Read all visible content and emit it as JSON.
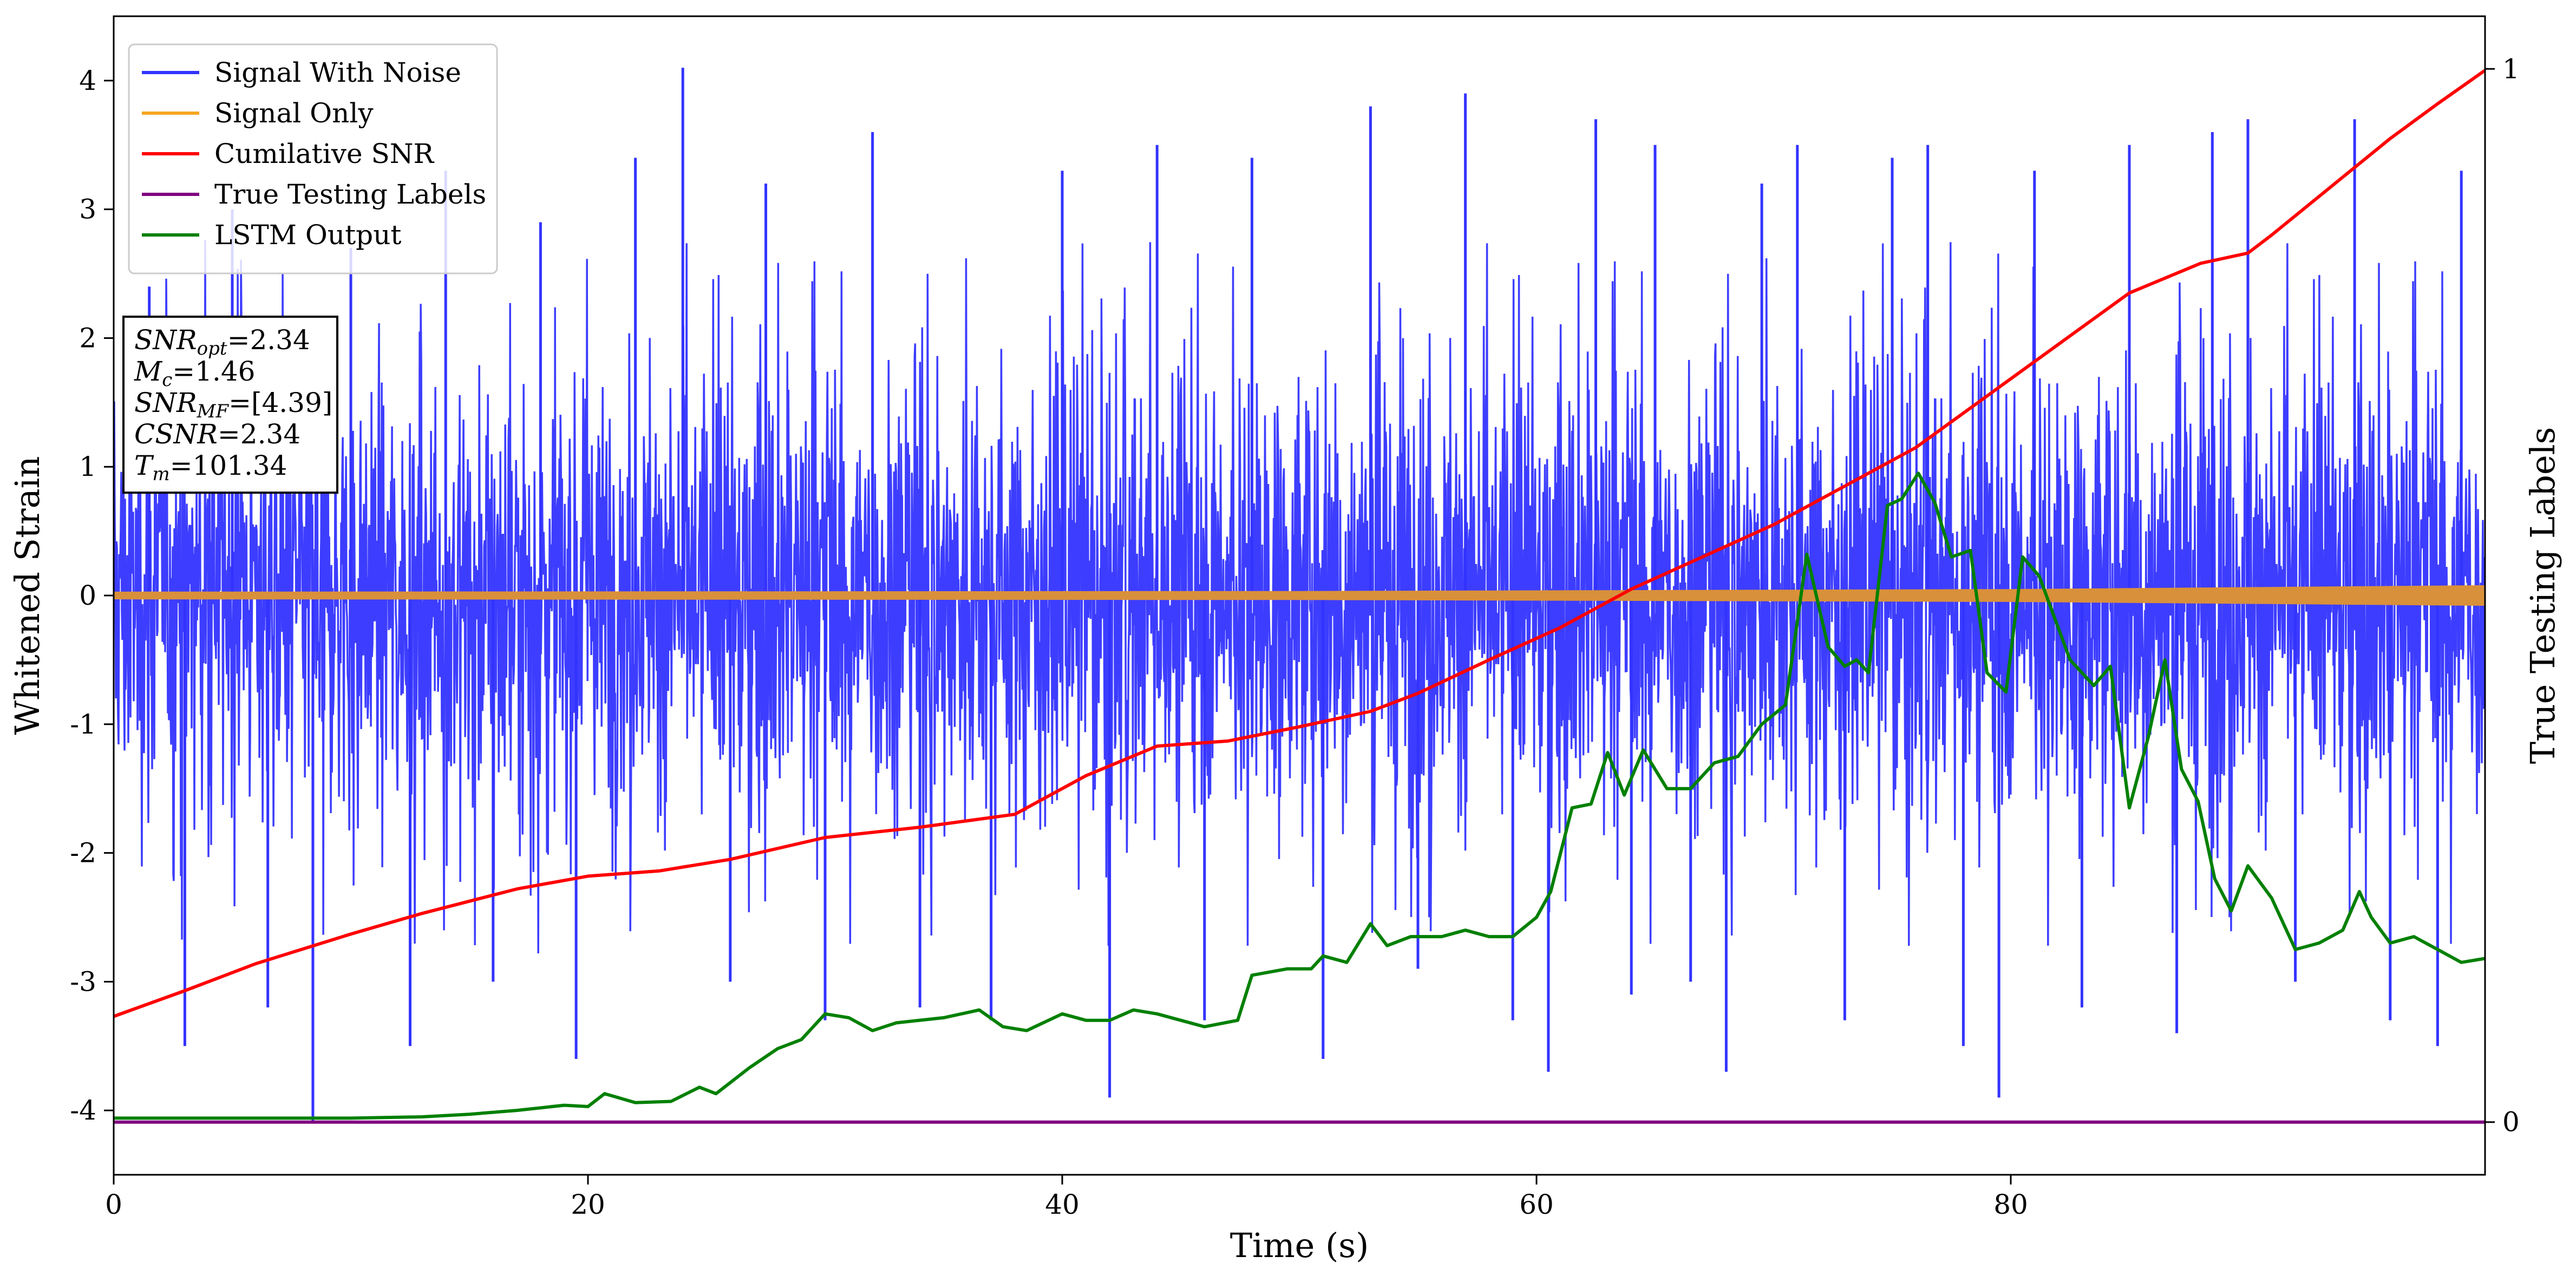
{
  "chart_data": {
    "type": "line",
    "title": "",
    "xlabel": "Time (s)",
    "ylabel": "Whitened Strain",
    "y2label": "True Testing Labels",
    "xlim": [
      0,
      100
    ],
    "ylim": [
      -4.5,
      4.5
    ],
    "y2lim": [
      -0.05,
      1.05
    ],
    "x_ticks": [
      0,
      20,
      40,
      60,
      80
    ],
    "y_ticks": [
      -4,
      -3,
      -2,
      -1,
      0,
      1,
      2,
      3,
      4
    ],
    "y2_ticks": [
      0,
      1
    ],
    "grid": false,
    "legend_position": "top-left",
    "series": [
      {
        "name": "Signal With Noise",
        "axis": "left",
        "color": "#3333ff",
        "style": "dense noise, roughly symmetric about 0",
        "typical_band": [
          -1.5,
          1.5
        ],
        "spike_x": [
          1.5,
          3,
          5,
          6.5,
          8.4,
          10,
          12.5,
          14,
          16,
          18,
          19.5,
          22,
          24,
          26,
          27.5,
          30,
          32,
          34,
          37,
          40,
          42,
          44,
          46,
          48,
          51,
          53,
          55,
          57,
          59,
          60.5,
          62.5,
          64,
          65,
          66.5,
          68,
          69.5,
          71,
          73,
          75,
          76.5,
          78,
          79.5,
          81,
          83,
          85,
          87,
          88.5,
          90,
          92,
          94.5,
          96,
          98,
          99
        ],
        "spike_y": [
          2.4,
          -3.5,
          3.0,
          -3.2,
          -4.1,
          2.7,
          -3.5,
          3.3,
          -3.0,
          2.9,
          -3.6,
          3.4,
          4.1,
          -3.0,
          3.2,
          -3.3,
          3.6,
          -3.2,
          -3.3,
          3.3,
          -3.9,
          3.5,
          -3.3,
          3.4,
          -3.6,
          3.8,
          -2.9,
          3.9,
          -3.3,
          -3.7,
          3.7,
          -3.1,
          3.5,
          -3.0,
          -3.7,
          3.2,
          3.5,
          -3.3,
          3.4,
          3.5,
          -3.5,
          -3.9,
          3.3,
          -3.2,
          3.5,
          -3.4,
          3.6,
          3.7,
          -3.0,
          3.7,
          -3.3,
          -3.5,
          3.3
        ]
      },
      {
        "name": "Signal Only",
        "axis": "left",
        "color": "#f5a623",
        "style": "thin chirp band around 0",
        "amplitude_x": [
          0,
          50,
          80,
          100
        ],
        "amplitude_y": [
          0.03,
          0.035,
          0.05,
          0.08
        ]
      },
      {
        "name": "Cumilative SNR",
        "axis": "left",
        "color": "#ff0000",
        "x": [
          0,
          3,
          6,
          10,
          13,
          17,
          20,
          23,
          26,
          30,
          34,
          38,
          41,
          44,
          47,
          50,
          53,
          55,
          58,
          61,
          64,
          67,
          70,
          73,
          76,
          79,
          82,
          85,
          88,
          90,
          91,
          94,
          96,
          98,
          100
        ],
        "y": [
          -3.27,
          -3.07,
          -2.86,
          -2.63,
          -2.47,
          -2.28,
          -2.18,
          -2.14,
          -2.05,
          -1.88,
          -1.8,
          -1.7,
          -1.4,
          -1.17,
          -1.13,
          -1.02,
          -0.9,
          -0.76,
          -0.5,
          -0.25,
          0.05,
          0.3,
          0.55,
          0.85,
          1.15,
          1.55,
          1.95,
          2.35,
          2.58,
          2.66,
          2.8,
          3.25,
          3.55,
          3.82,
          4.08
        ]
      },
      {
        "name": "True Testing Labels",
        "axis": "right",
        "color": "#800080",
        "x": [
          0,
          100
        ],
        "y": [
          0,
          0
        ]
      },
      {
        "name": "LSTM Output",
        "axis": "left",
        "color": "#008000",
        "x": [
          0,
          10,
          13,
          15,
          17,
          19,
          20,
          20.7,
          22,
          23.5,
          24.7,
          25.4,
          26.8,
          28,
          29,
          30,
          31,
          32,
          33,
          35,
          36.5,
          37.5,
          38.5,
          40,
          41,
          42,
          43,
          44,
          45,
          46,
          47.4,
          48,
          49.5,
          50.5,
          51,
          52,
          53,
          53.7,
          54.7,
          56,
          57,
          58,
          59,
          60,
          60.6,
          61.5,
          62.3,
          63,
          63.7,
          64.5,
          65.5,
          66.5,
          67.5,
          68.5,
          69.5,
          70.5,
          71.4,
          72.3,
          73,
          73.5,
          74,
          74.8,
          75.4,
          76.1,
          76.8,
          77.5,
          78.3,
          79,
          79.8,
          80.5,
          81.2,
          82.5,
          83.5,
          84.2,
          85,
          85.8,
          86.5,
          87.2,
          87.9,
          88.6,
          89.3,
          90,
          91,
          92,
          93,
          94,
          94.7,
          95.2,
          96,
          97,
          98,
          99,
          100
        ],
        "y": [
          -4.06,
          -4.06,
          -4.05,
          -4.03,
          -4.0,
          -3.96,
          -3.97,
          -3.87,
          -3.94,
          -3.93,
          -3.82,
          -3.87,
          -3.67,
          -3.52,
          -3.45,
          -3.25,
          -3.28,
          -3.38,
          -3.32,
          -3.28,
          -3.22,
          -3.35,
          -3.38,
          -3.25,
          -3.3,
          -3.3,
          -3.22,
          -3.25,
          -3.3,
          -3.35,
          -3.3,
          -2.95,
          -2.9,
          -2.9,
          -2.8,
          -2.85,
          -2.55,
          -2.72,
          -2.65,
          -2.65,
          -2.6,
          -2.65,
          -2.65,
          -2.5,
          -2.3,
          -1.65,
          -1.62,
          -1.22,
          -1.55,
          -1.2,
          -1.5,
          -1.5,
          -1.3,
          -1.25,
          -1.0,
          -0.85,
          0.32,
          -0.4,
          -0.55,
          -0.5,
          -0.6,
          0.7,
          0.75,
          0.95,
          0.72,
          0.3,
          0.35,
          -0.6,
          -0.75,
          0.3,
          0.15,
          -0.5,
          -0.7,
          -0.55,
          -1.65,
          -1.1,
          -0.5,
          -1.35,
          -1.6,
          -2.2,
          -2.45,
          -2.1,
          -2.35,
          -2.75,
          -2.7,
          -2.6,
          -2.3,
          -2.5,
          -2.7,
          -2.65,
          -2.75,
          -2.85,
          -2.82
        ]
      }
    ],
    "annotation": {
      "lines": [
        {
          "base": "SNR",
          "sub": "opt",
          "value": "=2.34"
        },
        {
          "base": "M",
          "sub": "c",
          "value": "=1.46"
        },
        {
          "base": "SNR",
          "sub": "MF",
          "value": "=[4.39]"
        },
        {
          "base": "CSNR",
          "sub": "",
          "value": "=2.34"
        },
        {
          "base": "T",
          "sub": "m",
          "value": "=101.34"
        }
      ]
    }
  }
}
